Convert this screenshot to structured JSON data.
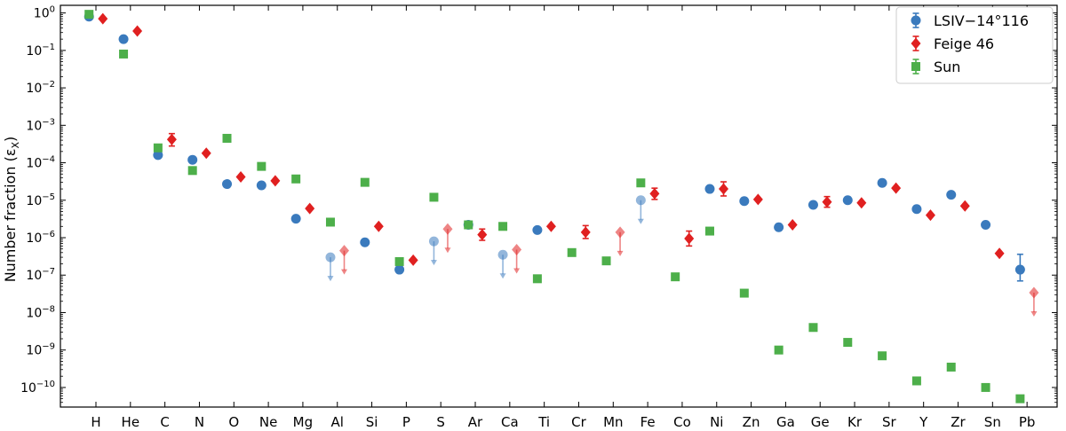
{
  "chart_data": {
    "type": "scatter",
    "ylabel": "Number fraction (ε",
    "ylabel_sub": "X",
    "ylabel_close": ")",
    "yscale": "log",
    "ylim": [
      3e-11,
      1.6
    ],
    "categories": [
      "H",
      "He",
      "C",
      "N",
      "O",
      "Ne",
      "Mg",
      "Al",
      "Si",
      "P",
      "S",
      "Ar",
      "Ca",
      "Ti",
      "Cr",
      "Mn",
      "Fe",
      "Co",
      "Ni",
      "Zn",
      "Ga",
      "Ge",
      "Kr",
      "Sr",
      "Y",
      "Zr",
      "Sn",
      "Pb"
    ],
    "y_ticks": [
      {
        "value": 1,
        "base": "10",
        "exp": "0"
      },
      {
        "value": 0.1,
        "base": "10",
        "exp": "−1"
      },
      {
        "value": 0.01,
        "base": "10",
        "exp": "−2"
      },
      {
        "value": 0.001,
        "base": "10",
        "exp": "−3"
      },
      {
        "value": 0.0001,
        "base": "10",
        "exp": "−4"
      },
      {
        "value": 1e-05,
        "base": "10",
        "exp": "−5"
      },
      {
        "value": 1e-06,
        "base": "10",
        "exp": "−6"
      },
      {
        "value": 1e-07,
        "base": "10",
        "exp": "−7"
      },
      {
        "value": 1e-08,
        "base": "10",
        "exp": "−8"
      },
      {
        "value": 1e-09,
        "base": "10",
        "exp": "−9"
      },
      {
        "value": 1e-10,
        "base": "10",
        "exp": "−10"
      }
    ],
    "legend": {
      "position": "top-right"
    },
    "series": [
      {
        "name": "LSIV−14°116",
        "color": "#3a7abd",
        "marker": "circle",
        "x_offset": -0.2,
        "points": [
          {
            "el": "H",
            "y": 0.8
          },
          {
            "el": "He",
            "y": 0.2
          },
          {
            "el": "C",
            "y": 0.00016
          },
          {
            "el": "N",
            "y": 0.00012
          },
          {
            "el": "O",
            "y": 2.7e-05
          },
          {
            "el": "Ne",
            "y": 2.5e-05
          },
          {
            "el": "Mg",
            "y": 3.2e-06
          },
          {
            "el": "Al",
            "y": 3e-07,
            "upper_limit": true
          },
          {
            "el": "Si",
            "y": 7.5e-07
          },
          {
            "el": "P",
            "y": 1.4e-07
          },
          {
            "el": "S",
            "y": 8e-07,
            "upper_limit": true
          },
          {
            "el": "Ar",
            "y": 2.2e-06
          },
          {
            "el": "Ca",
            "y": 3.5e-07,
            "upper_limit": true
          },
          {
            "el": "Ti",
            "y": 1.6e-06
          },
          {
            "el": "Fe",
            "y": 1e-05,
            "upper_limit": true
          },
          {
            "el": "Ni",
            "y": 2e-05
          },
          {
            "el": "Zn",
            "y": 9.5e-06
          },
          {
            "el": "Ga",
            "y": 1.9e-06
          },
          {
            "el": "Ge",
            "y": 7.5e-06
          },
          {
            "el": "Kr",
            "y": 1e-05
          },
          {
            "el": "Sr",
            "y": 2.9e-05
          },
          {
            "el": "Y",
            "y": 5.8e-06
          },
          {
            "el": "Zr",
            "y": 1.4e-05
          },
          {
            "el": "Sn",
            "y": 2.2e-06
          },
          {
            "el": "Pb",
            "y": 1.4e-07,
            "err_lo": 7e-08,
            "err_hi": 3.6e-07
          }
        ]
      },
      {
        "name": "Feige 46",
        "color": "#e02020",
        "marker": "diamond",
        "x_offset": 0.2,
        "points": [
          {
            "el": "H",
            "y": 0.7
          },
          {
            "el": "He",
            "y": 0.33
          },
          {
            "el": "C",
            "y": 0.00042,
            "err_lo": 0.00028,
            "err_hi": 0.0006
          },
          {
            "el": "N",
            "y": 0.00018
          },
          {
            "el": "O",
            "y": 4.2e-05
          },
          {
            "el": "Ne",
            "y": 3.3e-05
          },
          {
            "el": "Mg",
            "y": 6e-06
          },
          {
            "el": "Al",
            "y": 4.5e-07,
            "upper_limit": true
          },
          {
            "el": "Si",
            "y": 2e-06
          },
          {
            "el": "P",
            "y": 2.5e-07
          },
          {
            "el": "S",
            "y": 1.7e-06,
            "upper_limit": true
          },
          {
            "el": "Ar",
            "y": 1.2e-06,
            "err_lo": 8.5e-07,
            "err_hi": 1.7e-06
          },
          {
            "el": "Ca",
            "y": 4.8e-07,
            "upper_limit": true
          },
          {
            "el": "Ti",
            "y": 2e-06
          },
          {
            "el": "Cr",
            "y": 1.4e-06,
            "err_lo": 9.5e-07,
            "err_hi": 2.1e-06
          },
          {
            "el": "Mn",
            "y": 1.4e-06,
            "upper_limit": true
          },
          {
            "el": "Fe",
            "y": 1.5e-05,
            "err_lo": 1.05e-05,
            "err_hi": 2.1e-05
          },
          {
            "el": "Co",
            "y": 9.5e-07,
            "err_lo": 6e-07,
            "err_hi": 1.5e-06
          },
          {
            "el": "Ni",
            "y": 2e-05,
            "err_lo": 1.3e-05,
            "err_hi": 3.1e-05
          },
          {
            "el": "Zn",
            "y": 1.05e-05
          },
          {
            "el": "Ga",
            "y": 2.2e-06
          },
          {
            "el": "Ge",
            "y": 9e-06,
            "err_lo": 6.5e-06,
            "err_hi": 1.25e-05
          },
          {
            "el": "Kr",
            "y": 8.5e-06
          },
          {
            "el": "Sr",
            "y": 2.1e-05
          },
          {
            "el": "Y",
            "y": 4e-06
          },
          {
            "el": "Zr",
            "y": 7e-06
          },
          {
            "el": "Sn",
            "y": 3.8e-07
          },
          {
            "el": "Pb",
            "y": 3.4e-08,
            "upper_limit": true
          }
        ]
      },
      {
        "name": "Sun",
        "color": "#4daf4a",
        "marker": "square",
        "x_offset": -0.2,
        "points": [
          {
            "el": "H",
            "y": 0.92
          },
          {
            "el": "He",
            "y": 0.08
          },
          {
            "el": "C",
            "y": 0.00025
          },
          {
            "el": "N",
            "y": 6.2e-05
          },
          {
            "el": "O",
            "y": 0.00045
          },
          {
            "el": "Ne",
            "y": 8e-05
          },
          {
            "el": "Mg",
            "y": 3.7e-05
          },
          {
            "el": "Al",
            "y": 2.6e-06
          },
          {
            "el": "Si",
            "y": 3e-05
          },
          {
            "el": "P",
            "y": 2.3e-07
          },
          {
            "el": "S",
            "y": 1.2e-05
          },
          {
            "el": "Ar",
            "y": 2.2e-06
          },
          {
            "el": "Ca",
            "y": 2e-06
          },
          {
            "el": "Ti",
            "y": 8e-08
          },
          {
            "el": "Cr",
            "y": 4e-07
          },
          {
            "el": "Mn",
            "y": 2.4e-07
          },
          {
            "el": "Fe",
            "y": 2.9e-05
          },
          {
            "el": "Co",
            "y": 9e-08
          },
          {
            "el": "Ni",
            "y": 1.5e-06
          },
          {
            "el": "Zn",
            "y": 3.3e-08
          },
          {
            "el": "Ga",
            "y": 1e-09
          },
          {
            "el": "Ge",
            "y": 4e-09
          },
          {
            "el": "Kr",
            "y": 1.6e-09
          },
          {
            "el": "Sr",
            "y": 7e-10
          },
          {
            "el": "Y",
            "y": 1.5e-10
          },
          {
            "el": "Zr",
            "y": 3.5e-10
          },
          {
            "el": "Sn",
            "y": 1e-10
          },
          {
            "el": "Pb",
            "y": 5e-11
          }
        ]
      }
    ]
  }
}
